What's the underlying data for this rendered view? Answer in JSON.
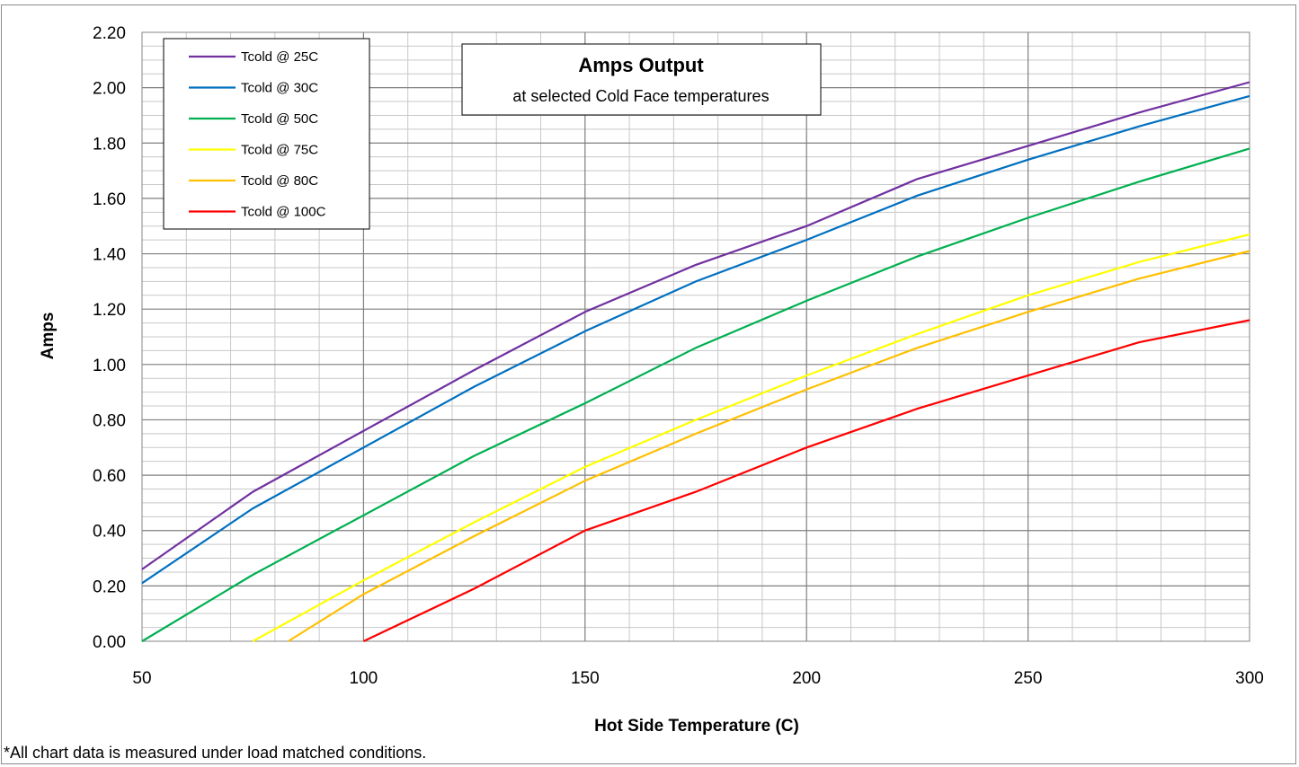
{
  "chart_data": {
    "type": "line",
    "title": "Amps Output",
    "subtitle": "at selected Cold Face temperatures",
    "xlabel": "Hot Side Temperature (C)",
    "ylabel": "Amps",
    "xlim": [
      50,
      300
    ],
    "ylim": [
      0,
      2.2
    ],
    "x_ticks": [
      "50",
      "100",
      "150",
      "200",
      "250",
      "300"
    ],
    "y_ticks": [
      "0.00",
      "0.20",
      "0.40",
      "0.60",
      "0.80",
      "1.00",
      "1.20",
      "1.40",
      "1.60",
      "1.80",
      "2.00",
      "2.20"
    ],
    "grid": true,
    "legend_position": "top-left",
    "series": [
      {
        "name": "Tcold @ 25C",
        "color": "#7030a0",
        "x": [
          50,
          75,
          125,
          150,
          175,
          200,
          225,
          250,
          275,
          300
        ],
        "y": [
          0.26,
          0.54,
          0.98,
          1.19,
          1.36,
          1.5,
          1.67,
          1.79,
          1.91,
          2.02
        ]
      },
      {
        "name": "Tcold @ 30C",
        "color": "#0070c0",
        "x": [
          50,
          75,
          125,
          150,
          175,
          200,
          225,
          250,
          275,
          300
        ],
        "y": [
          0.21,
          0.48,
          0.92,
          1.12,
          1.3,
          1.45,
          1.61,
          1.74,
          1.86,
          1.97
        ]
      },
      {
        "name": "Tcold @ 50C",
        "color": "#00b050",
        "x": [
          50,
          75,
          125,
          150,
          175,
          200,
          225,
          250,
          275,
          300
        ],
        "y": [
          0.0,
          0.24,
          0.67,
          0.86,
          1.06,
          1.23,
          1.39,
          1.53,
          1.66,
          1.78
        ]
      },
      {
        "name": "Tcold @ 75C",
        "color": "#ffff00",
        "x": [
          75,
          100,
          125,
          150,
          175,
          200,
          225,
          250,
          275,
          300
        ],
        "y": [
          0.0,
          0.22,
          0.43,
          0.63,
          0.8,
          0.96,
          1.11,
          1.25,
          1.37,
          1.47
        ]
      },
      {
        "name": "Tcold @ 80C",
        "color": "#ffc000",
        "x": [
          83,
          100,
          125,
          150,
          175,
          200,
          225,
          250,
          275,
          300
        ],
        "y": [
          0.0,
          0.17,
          0.38,
          0.58,
          0.75,
          0.91,
          1.06,
          1.19,
          1.31,
          1.41
        ]
      },
      {
        "name": "Tcold @ 100C",
        "color": "#ff0000",
        "x": [
          100,
          125,
          150,
          175,
          200,
          225,
          250,
          275,
          300
        ],
        "y": [
          0.0,
          0.19,
          0.4,
          0.54,
          0.7,
          0.84,
          0.96,
          1.08,
          1.16
        ]
      }
    ]
  },
  "footnote": "*All chart data is measured under load matched conditions."
}
